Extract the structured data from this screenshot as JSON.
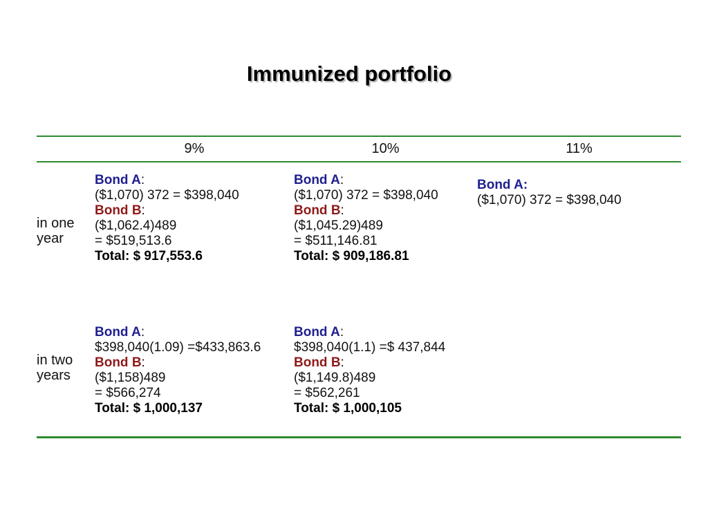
{
  "slide": {
    "title": "Immunized portfolio"
  },
  "colors": {
    "bond_a_blue": "#20208F",
    "bond_b_dark_red": "#8E1A1A",
    "table_line_green": "#2E8B2E",
    "title_shadow_gray": "#b3b3b3"
  },
  "table": {
    "headers": {
      "rate_9": "9%",
      "rate_10": "10%",
      "rate_11": "11%"
    },
    "row_one": {
      "label": "in one year",
      "col_9": {
        "bond_a_name": "Bond A",
        "bond_a_colon": ":",
        "bond_a_calc": "($1,070) 372 = $398,040",
        "bond_b_name": "Bond B",
        "bond_b_colon": ":",
        "bond_b_calc_line1": "($1,062.4)489",
        "bond_b_calc_line2": "= $519,513.6",
        "total": "Total: $ 917,553.6"
      },
      "col_10": {
        "bond_a_name": "Bond A",
        "bond_a_colon": ":",
        "bond_a_calc": "($1,070) 372 = $398,040",
        "bond_b_name": "Bond B",
        "bond_b_colon": ":",
        "bond_b_calc_line1": "($1,045.29)489",
        "bond_b_calc_line2": "= $511,146.81",
        "total": "Total: $ 909,186.81"
      },
      "col_11": {
        "bond_a_name": "Bond A:",
        "bond_a_calc": "($1,070) 372 = $398,040"
      }
    },
    "row_two": {
      "label": "in two years",
      "col_9": {
        "bond_a_name": "Bond A",
        "bond_a_colon": ":",
        "bond_a_calc": "$398,040(1.09) =$433,863.6",
        "bond_b_name": "Bond B",
        "bond_b_colon": ":",
        "bond_b_calc_line1": "($1,158)489",
        "bond_b_calc_line2": "= $566,274",
        "total": "Total: $ 1,000,137"
      },
      "col_10": {
        "bond_a_name": "Bond A",
        "bond_a_colon": ":",
        "bond_a_calc": "$398,040(1.1) =$ 437,844",
        "bond_b_name": "Bond B",
        "bond_b_colon": ":",
        "bond_b_calc_line1": "($1,149.8)489",
        "bond_b_calc_line2": "= $562,261",
        "total": "Total: $ 1,000,105"
      }
    }
  }
}
